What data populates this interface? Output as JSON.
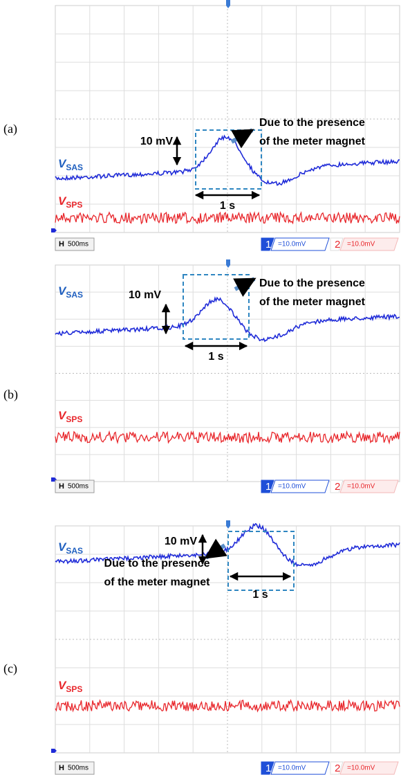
{
  "panels": [
    {
      "label": "(a)",
      "trace1": {
        "symbol": "V",
        "subscript": "SAS"
      },
      "trace2": {
        "symbol": "V",
        "subscript": "SPS"
      },
      "amplitude": "10 mV",
      "duration": "1 s",
      "annotation": [
        "Due to the presence",
        "of the meter magnet"
      ],
      "timebase": {
        "key": "H",
        "value": "500ms"
      },
      "channels": [
        {
          "number": "1",
          "scale": "=10.0mV"
        },
        {
          "number": "2",
          "scale": "=10.0mV"
        }
      ]
    },
    {
      "label": "(b)",
      "trace1": {
        "symbol": "V",
        "subscript": "SAS"
      },
      "trace2": {
        "symbol": "V",
        "subscript": "SPS"
      },
      "amplitude": "10 mV",
      "duration": "1 s",
      "annotation": [
        "Due to the presence",
        "of the meter magnet"
      ],
      "timebase": {
        "key": "H",
        "value": "500ms"
      },
      "channels": [
        {
          "number": "1",
          "scale": "=10.0mV"
        },
        {
          "number": "2",
          "scale": "=10.0mV"
        }
      ]
    },
    {
      "label": "(c)",
      "trace1": {
        "symbol": "V",
        "subscript": "SAS"
      },
      "trace2": {
        "symbol": "V",
        "subscript": "SPS"
      },
      "amplitude": "10 mV",
      "duration": "1 s",
      "annotation": [
        "Due to the presence",
        "of the meter magnet"
      ],
      "timebase": {
        "key": "H",
        "value": "500ms"
      },
      "channels": [
        {
          "number": "1",
          "scale": "=10.0mV"
        },
        {
          "number": "2",
          "scale": "=10.0mV"
        }
      ]
    }
  ]
}
